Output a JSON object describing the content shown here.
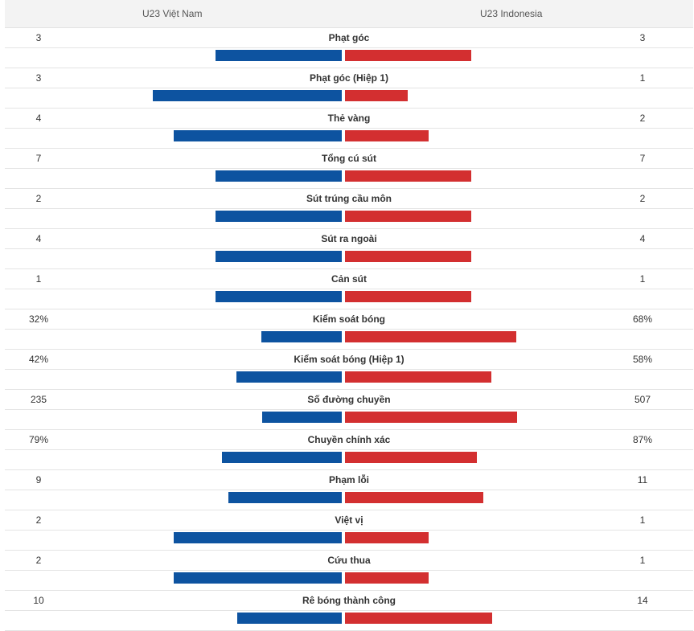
{
  "header": {
    "home_team": "U23 Việt Nam",
    "away_team": "U23 Indonesia"
  },
  "colors": {
    "home": "#0d53a0",
    "away": "#d32f30"
  },
  "chart_data": {
    "type": "bar",
    "categories": [
      "Phạt góc",
      "Phạt góc (Hiệp 1)",
      "Thẻ vàng",
      "Tổng cú sút",
      "Sút trúng cầu môn",
      "Sút ra ngoài",
      "Cản sút",
      "Kiểm soát bóng",
      "Kiểm soát bóng (Hiệp 1)",
      "Số đường chuyền",
      "Chuyền chính xác",
      "Phạm lỗi",
      "Việt vị",
      "Cứu thua",
      "Rê bóng thành công"
    ],
    "series": [
      {
        "name": "U23 Việt Nam",
        "labels": [
          "3",
          "3",
          "4",
          "7",
          "2",
          "4",
          "1",
          "32%",
          "42%",
          "235",
          "79%",
          "9",
          "2",
          "2",
          "10"
        ],
        "values": [
          3,
          3,
          4,
          7,
          2,
          4,
          1,
          32,
          42,
          235,
          79,
          9,
          2,
          2,
          10
        ]
      },
      {
        "name": "U23 Indonesia",
        "labels": [
          "3",
          "1",
          "2",
          "7",
          "2",
          "4",
          "1",
          "68%",
          "58%",
          "507",
          "87%",
          "11",
          "1",
          "1",
          "14"
        ],
        "values": [
          3,
          1,
          2,
          7,
          2,
          4,
          1,
          68,
          58,
          507,
          87,
          11,
          1,
          1,
          14
        ]
      }
    ]
  }
}
